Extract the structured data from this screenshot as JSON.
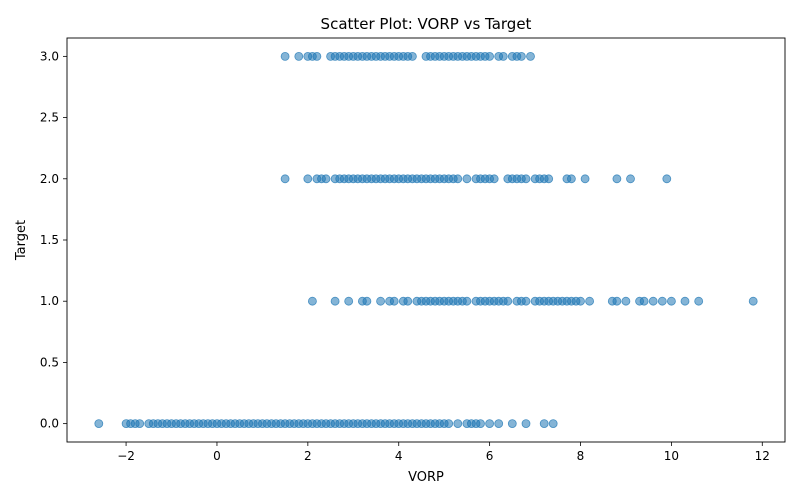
{
  "chart_data": {
    "type": "scatter",
    "title": "Scatter Plot: VORP vs Target",
    "xlabel": "VORP",
    "ylabel": "Target",
    "xlim": [
      -3.3,
      12.5
    ],
    "ylim": [
      -0.15,
      3.15
    ],
    "xticks": [
      -2,
      0,
      2,
      4,
      6,
      8,
      10,
      12
    ],
    "yticks": [
      0.0,
      0.5,
      1.0,
      1.5,
      2.0,
      2.5,
      3.0
    ],
    "xtick_labels": [
      "−2",
      "0",
      "2",
      "4",
      "6",
      "8",
      "10",
      "12"
    ],
    "ytick_labels": [
      "0.0",
      "0.5",
      "1.0",
      "1.5",
      "2.0",
      "2.5",
      "3.0"
    ],
    "grid": false,
    "legend": "none",
    "marker_color": "#1f77b4",
    "marker_alpha": 0.55,
    "series": [
      {
        "x": [
          1.5,
          1.8,
          2.0,
          2.1,
          2.2,
          2.5,
          2.6,
          2.7,
          2.8,
          2.9,
          3.0,
          3.1,
          3.2,
          3.3,
          3.4,
          3.5,
          3.6,
          3.7,
          3.8,
          3.9,
          4.0,
          4.1,
          4.2,
          4.3,
          4.6,
          4.7,
          4.8,
          4.9,
          5.0,
          5.1,
          5.2,
          5.3,
          5.4,
          5.5,
          5.6,
          5.7,
          5.8,
          5.9,
          6.0,
          6.2,
          6.3,
          6.5,
          6.6,
          6.7,
          6.9,
          1.5,
          2.0,
          2.2,
          2.3,
          2.4,
          2.6,
          2.7,
          2.8,
          2.9,
          3.0,
          3.1,
          3.2,
          3.3,
          3.4,
          3.5,
          3.6,
          3.7,
          3.8,
          3.9,
          4.0,
          4.1,
          4.2,
          4.3,
          4.4,
          4.5,
          4.6,
          4.7,
          4.8,
          4.9,
          5.0,
          5.1,
          5.2,
          5.3,
          5.5,
          5.7,
          5.8,
          5.9,
          6.0,
          6.1,
          6.4,
          6.5,
          6.6,
          6.7,
          6.8,
          7.0,
          7.1,
          7.2,
          7.3,
          7.7,
          7.8,
          8.1,
          8.8,
          9.1,
          9.9,
          2.1,
          2.6,
          2.9,
          3.2,
          3.3,
          3.6,
          3.8,
          3.9,
          4.1,
          4.2,
          4.4,
          4.5,
          4.6,
          4.7,
          4.8,
          4.9,
          5.0,
          5.1,
          5.2,
          5.3,
          5.4,
          5.5,
          5.7,
          5.8,
          5.9,
          6.0,
          6.1,
          6.2,
          6.3,
          6.4,
          6.6,
          6.7,
          6.8,
          7.0,
          7.1,
          7.2,
          7.3,
          7.4,
          7.5,
          7.6,
          7.7,
          7.8,
          7.9,
          8.0,
          8.2,
          8.7,
          8.8,
          9.0,
          9.3,
          9.4,
          9.6,
          9.8,
          10.0,
          10.3,
          10.6,
          11.8,
          -2.6,
          -2.0,
          -1.9,
          -1.8,
          -1.7,
          -1.5,
          -1.4,
          -1.3,
          -1.2,
          -1.1,
          -1.0,
          -0.9,
          -0.8,
          -0.7,
          -0.6,
          -0.5,
          -0.4,
          -0.3,
          -0.2,
          -0.1,
          0.0,
          0.1,
          0.2,
          0.3,
          0.4,
          0.5,
          0.6,
          0.7,
          0.8,
          0.9,
          1.0,
          1.1,
          1.2,
          1.3,
          1.4,
          1.5,
          1.6,
          1.7,
          1.8,
          1.9,
          2.0,
          2.1,
          2.2,
          2.3,
          2.4,
          2.5,
          2.6,
          2.7,
          2.8,
          2.9,
          3.0,
          3.1,
          3.2,
          3.3,
          3.4,
          3.5,
          3.6,
          3.7,
          3.8,
          3.9,
          4.0,
          4.1,
          4.2,
          4.3,
          4.4,
          4.5,
          4.6,
          4.7,
          4.8,
          4.9,
          5.0,
          5.1,
          5.3,
          5.5,
          5.6,
          5.7,
          5.8,
          6.0,
          6.2,
          6.5,
          6.8,
          7.2,
          7.4
        ],
        "y": [
          3,
          3,
          3,
          3,
          3,
          3,
          3,
          3,
          3,
          3,
          3,
          3,
          3,
          3,
          3,
          3,
          3,
          3,
          3,
          3,
          3,
          3,
          3,
          3,
          3,
          3,
          3,
          3,
          3,
          3,
          3,
          3,
          3,
          3,
          3,
          3,
          3,
          3,
          3,
          3,
          3,
          3,
          3,
          3,
          3,
          2,
          2,
          2,
          2,
          2,
          2,
          2,
          2,
          2,
          2,
          2,
          2,
          2,
          2,
          2,
          2,
          2,
          2,
          2,
          2,
          2,
          2,
          2,
          2,
          2,
          2,
          2,
          2,
          2,
          2,
          2,
          2,
          2,
          2,
          2,
          2,
          2,
          2,
          2,
          2,
          2,
          2,
          2,
          2,
          2,
          2,
          2,
          2,
          2,
          2,
          2,
          2,
          2,
          2,
          1,
          1,
          1,
          1,
          1,
          1,
          1,
          1,
          1,
          1,
          1,
          1,
          1,
          1,
          1,
          1,
          1,
          1,
          1,
          1,
          1,
          1,
          1,
          1,
          1,
          1,
          1,
          1,
          1,
          1,
          1,
          1,
          1,
          1,
          1,
          1,
          1,
          1,
          1,
          1,
          1,
          1,
          1,
          1,
          1,
          1,
          1,
          1,
          1,
          1,
          1,
          1,
          1,
          1,
          1,
          1,
          0,
          0,
          0,
          0,
          0,
          0,
          0,
          0,
          0,
          0,
          0,
          0,
          0,
          0,
          0,
          0,
          0,
          0,
          0,
          0,
          0,
          0,
          0,
          0,
          0,
          0,
          0,
          0,
          0,
          0,
          0,
          0,
          0,
          0,
          0,
          0,
          0,
          0,
          0,
          0,
          0,
          0,
          0,
          0,
          0,
          0,
          0,
          0,
          0,
          0,
          0,
          0,
          0,
          0,
          0,
          0,
          0,
          0,
          0,
          0,
          0,
          0,
          0,
          0,
          0,
          0,
          0,
          0,
          0,
          0,
          0,
          0,
          0,
          0,
          0,
          0,
          0,
          0,
          0,
          0,
          0,
          0,
          0
        ]
      }
    ]
  }
}
